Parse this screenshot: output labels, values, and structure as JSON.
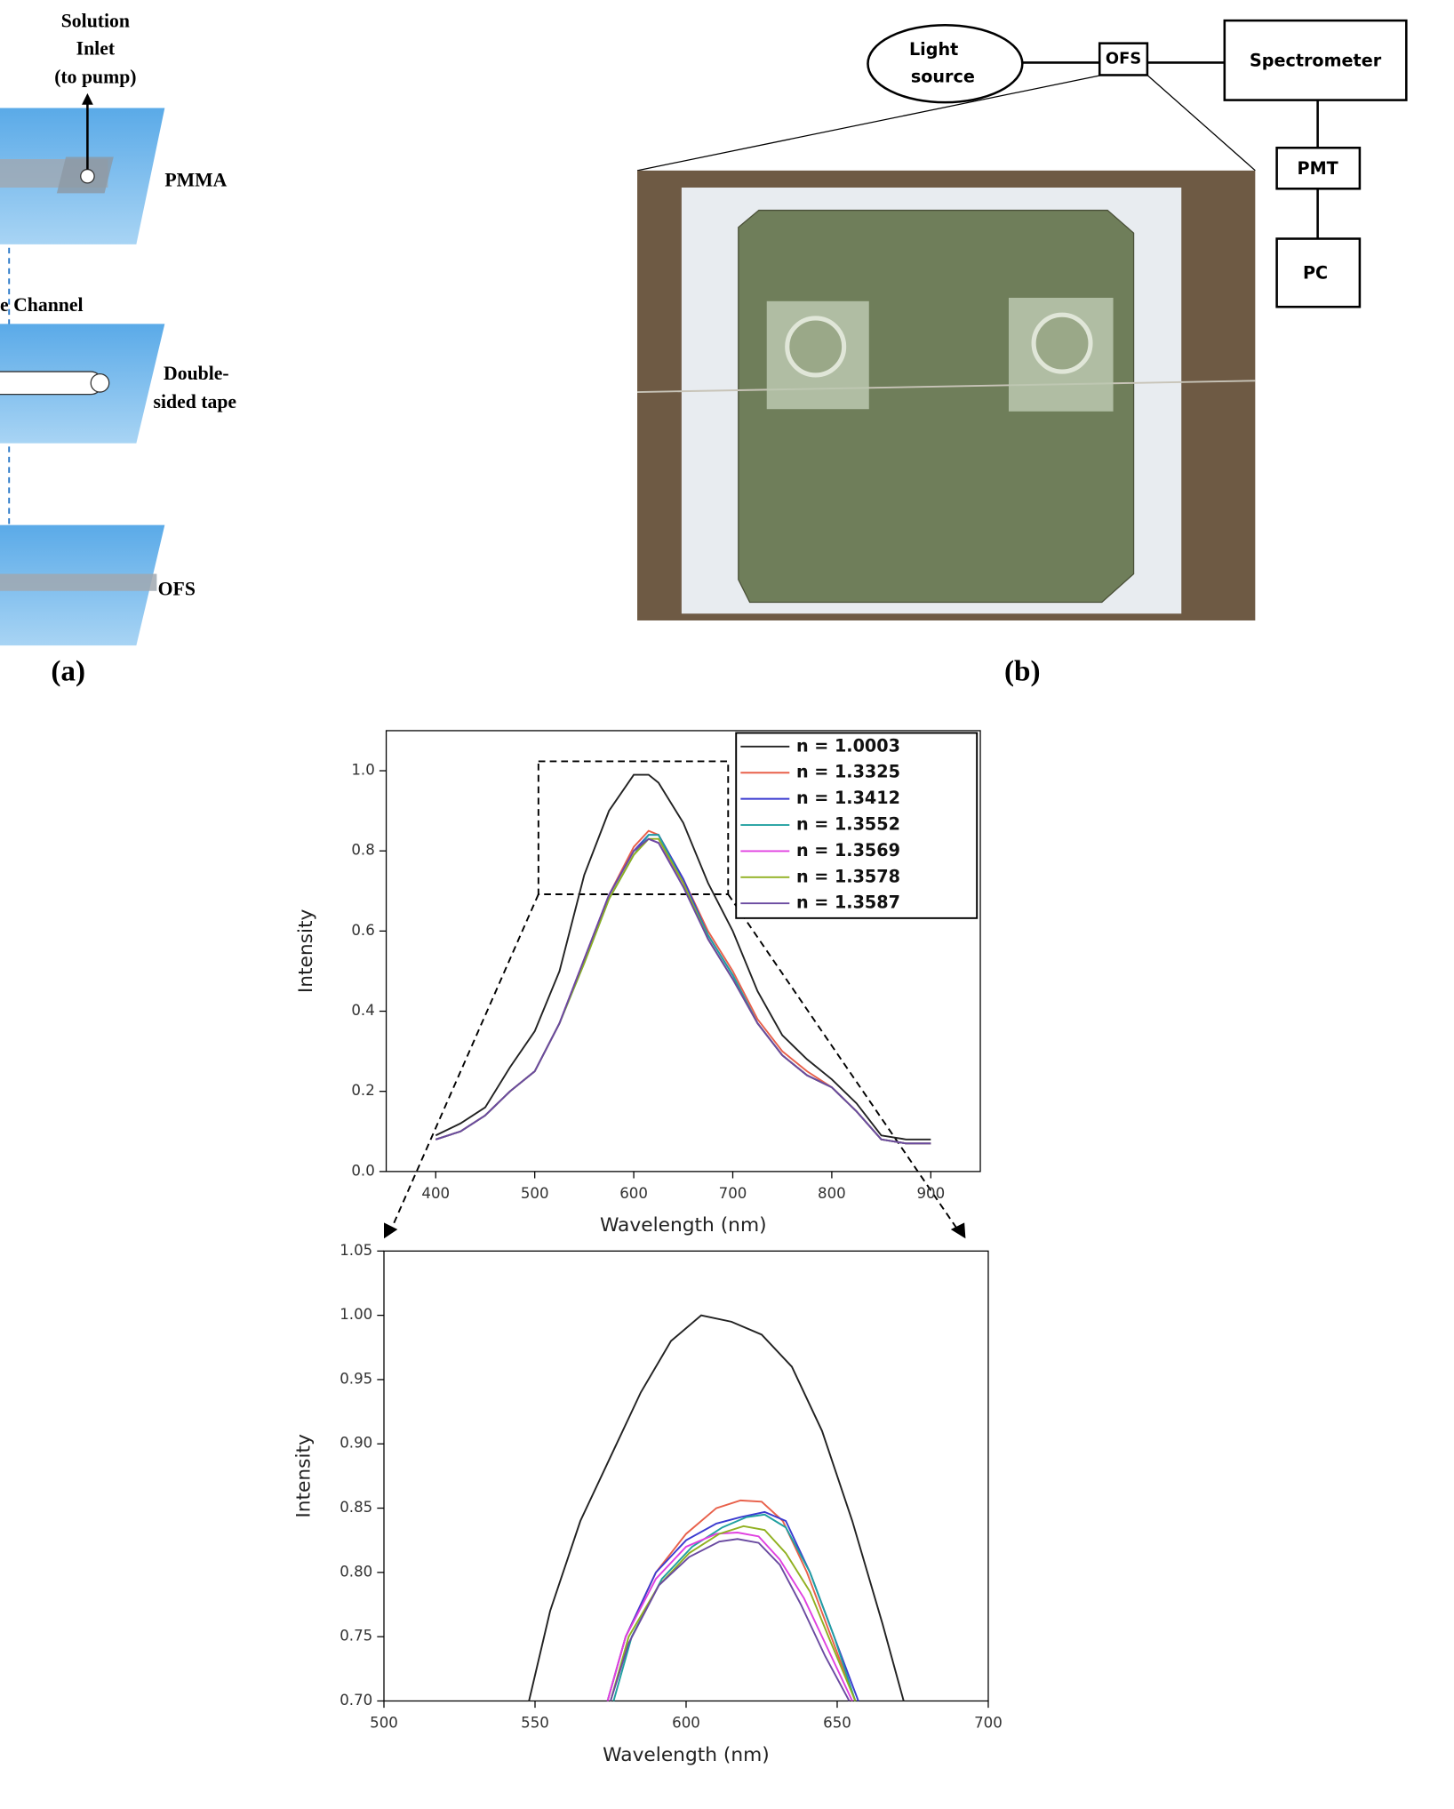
{
  "panel_a": {
    "inlet": [
      "Solution",
      "Inlet",
      "(to pump)"
    ],
    "layer_1": "PMMA",
    "channel": "e Channel",
    "layer_2": [
      "Double-",
      "sided tape"
    ],
    "layer_3": "OFS",
    "caption": "(a)"
  },
  "panel_b": {
    "light_source": [
      "Light",
      "source"
    ],
    "sensor": "OFS",
    "spectrometer": "Spectrometer",
    "pmt": "PMT",
    "pc": "PC",
    "caption": "(b)"
  },
  "chart_data": [
    {
      "type": "line",
      "x_label": "Wavelength (nm)",
      "y_label": "Intensity",
      "x": [
        400,
        425,
        450,
        475,
        500,
        525,
        550,
        575,
        600,
        615,
        625,
        650,
        675,
        700,
        725,
        750,
        775,
        800,
        825,
        850,
        875,
        900
      ],
      "xlim": [
        350,
        950
      ],
      "xticks": [
        400,
        500,
        600,
        700,
        800,
        900
      ],
      "ylim": [
        0,
        1.1
      ],
      "yticks": [
        {
          "value": 0,
          "label": "0.0"
        },
        0.2,
        0.4,
        0.6,
        0.8,
        {
          "value": 1,
          "label": "1.0"
        }
      ],
      "legend": "top-right",
      "series": [
        {
          "name": "n = 1.0003",
          "color": "#222222",
          "values": [
            0.09,
            0.12,
            0.16,
            0.26,
            0.35,
            0.5,
            0.74,
            0.9,
            0.99,
            0.99,
            0.97,
            0.87,
            0.72,
            0.6,
            0.45,
            0.34,
            0.28,
            0.23,
            0.17,
            0.09,
            0.08,
            0.08
          ]
        },
        {
          "name": "n = 1.3325",
          "color": "#e8604a",
          "values": [
            0.08,
            0.1,
            0.14,
            0.2,
            0.25,
            0.37,
            0.53,
            0.69,
            0.81,
            0.85,
            0.84,
            0.73,
            0.6,
            0.5,
            0.38,
            0.3,
            0.25,
            0.21,
            0.15,
            0.08,
            0.07,
            0.07
          ]
        },
        {
          "name": "n = 1.3412",
          "color": "#3b3bd0",
          "values": [
            0.08,
            0.1,
            0.14,
            0.2,
            0.25,
            0.37,
            0.53,
            0.69,
            0.8,
            0.84,
            0.84,
            0.73,
            0.59,
            0.49,
            0.37,
            0.29,
            0.24,
            0.21,
            0.15,
            0.08,
            0.07,
            0.07
          ]
        },
        {
          "name": "n = 1.3552",
          "color": "#20a0a0",
          "values": [
            0.08,
            0.1,
            0.14,
            0.2,
            0.25,
            0.37,
            0.52,
            0.68,
            0.79,
            0.84,
            0.84,
            0.72,
            0.59,
            0.49,
            0.37,
            0.29,
            0.24,
            0.21,
            0.15,
            0.08,
            0.07,
            0.07
          ]
        },
        {
          "name": "n = 1.3569",
          "color": "#e040e0",
          "values": [
            0.08,
            0.1,
            0.14,
            0.2,
            0.25,
            0.37,
            0.53,
            0.69,
            0.8,
            0.83,
            0.82,
            0.72,
            0.58,
            0.48,
            0.37,
            0.29,
            0.24,
            0.21,
            0.15,
            0.08,
            0.07,
            0.07
          ]
        },
        {
          "name": "n = 1.3578",
          "color": "#90b020",
          "values": [
            0.08,
            0.1,
            0.14,
            0.2,
            0.25,
            0.37,
            0.52,
            0.68,
            0.79,
            0.83,
            0.83,
            0.72,
            0.58,
            0.48,
            0.37,
            0.29,
            0.24,
            0.21,
            0.15,
            0.08,
            0.07,
            0.07
          ]
        },
        {
          "name": "n = 1.3587",
          "color": "#6a4aa0",
          "values": [
            0.08,
            0.1,
            0.14,
            0.2,
            0.25,
            0.37,
            0.53,
            0.69,
            0.8,
            0.83,
            0.82,
            0.71,
            0.58,
            0.48,
            0.37,
            0.29,
            0.24,
            0.21,
            0.15,
            0.08,
            0.07,
            0.07
          ]
        }
      ]
    },
    {
      "type": "line",
      "x_label": "Wavelength (nm)",
      "y_label": "Intensity",
      "xlim": [
        500,
        700
      ],
      "xticks": [
        500,
        550,
        600,
        650,
        700
      ],
      "ylim": [
        0.7,
        1.05
      ],
      "yticks": [
        {
          "value": 0.7,
          "label": "0.70"
        },
        0.75,
        {
          "value": 0.8,
          "label": "0.80"
        },
        0.85,
        {
          "value": 0.9,
          "label": "0.90"
        },
        0.95,
        {
          "value": 1,
          "label": "1.00"
        },
        1.05
      ],
      "series": [
        {
          "name": "n = 1.0003",
          "color": "#222222",
          "x": [
            548,
            555,
            565,
            575,
            585,
            595,
            605,
            615,
            625,
            635,
            645,
            655,
            665,
            672
          ],
          "values": [
            0.7,
            0.77,
            0.84,
            0.89,
            0.94,
            0.98,
            1.0,
            0.995,
            0.985,
            0.96,
            0.91,
            0.84,
            0.76,
            0.7
          ]
        },
        {
          "name": "n = 1.3325",
          "color": "#e8604a",
          "x": [
            574,
            580,
            590,
            600,
            610,
            618,
            625,
            632,
            640,
            648,
            656
          ],
          "values": [
            0.7,
            0.75,
            0.8,
            0.83,
            0.85,
            0.856,
            0.855,
            0.84,
            0.8,
            0.75,
            0.7
          ]
        },
        {
          "name": "n = 1.3412",
          "color": "#3b3bd0",
          "x": [
            574,
            580,
            590,
            600,
            610,
            618,
            626,
            633,
            641,
            649,
            657
          ],
          "values": [
            0.7,
            0.75,
            0.8,
            0.825,
            0.838,
            0.843,
            0.847,
            0.84,
            0.8,
            0.75,
            0.7
          ]
        },
        {
          "name": "n = 1.3552",
          "color": "#20a0a0",
          "x": [
            576,
            582,
            592,
            602,
            612,
            620,
            626,
            633,
            641,
            649,
            656
          ],
          "values": [
            0.7,
            0.75,
            0.795,
            0.82,
            0.835,
            0.843,
            0.845,
            0.835,
            0.8,
            0.75,
            0.7
          ]
        },
        {
          "name": "n = 1.3569",
          "color": "#e040e0",
          "x": [
            574,
            580,
            590,
            600,
            610,
            617,
            624,
            631,
            639,
            647,
            655
          ],
          "values": [
            0.7,
            0.75,
            0.795,
            0.82,
            0.83,
            0.831,
            0.828,
            0.81,
            0.78,
            0.74,
            0.7
          ]
        },
        {
          "name": "n = 1.3578",
          "color": "#90b020",
          "x": [
            575,
            581,
            591,
            601,
            611,
            619,
            626,
            633,
            641,
            648,
            656
          ],
          "values": [
            0.7,
            0.75,
            0.79,
            0.815,
            0.83,
            0.836,
            0.833,
            0.815,
            0.785,
            0.745,
            0.7
          ]
        },
        {
          "name": "n = 1.3587",
          "color": "#6a4aa0",
          "x": [
            575,
            581,
            591,
            601,
            611,
            617,
            624,
            631,
            638,
            646,
            654
          ],
          "values": [
            0.7,
            0.745,
            0.79,
            0.812,
            0.824,
            0.826,
            0.823,
            0.806,
            0.775,
            0.735,
            0.7
          ]
        }
      ]
    }
  ]
}
